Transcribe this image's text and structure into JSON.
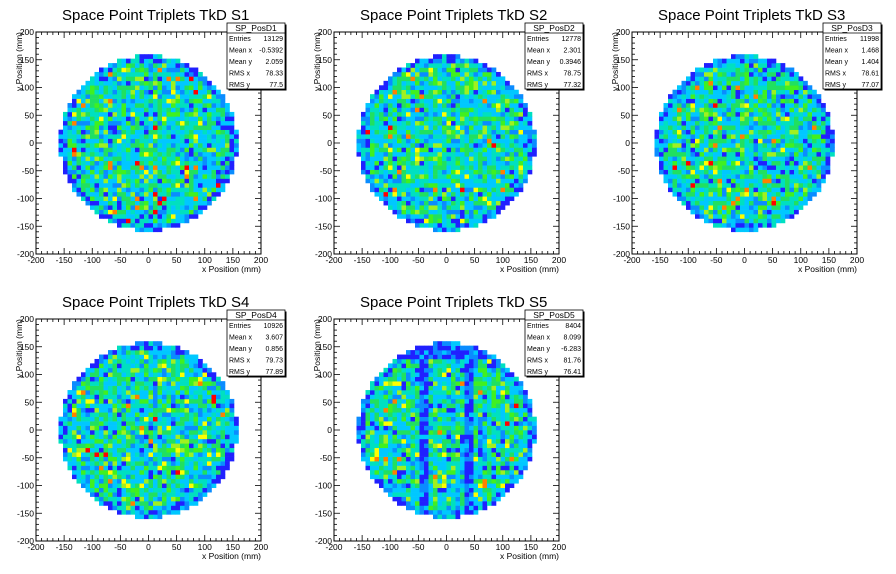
{
  "chart_data": [
    {
      "type": "heatmap",
      "title": "Space Point Triplets TkD S1",
      "xlabel": "x Position (mm)",
      "ylabel": "y Position (mm)",
      "xlim": [
        -200,
        200
      ],
      "ylim": [
        -200,
        200
      ],
      "xticks": [
        "-200",
        "-150",
        "-100",
        "-50",
        "0",
        "50",
        "100",
        "150",
        "200"
      ],
      "yticks": [
        "-200",
        "-150",
        "-100",
        "-50",
        "0",
        "50",
        "100",
        "150",
        "200"
      ],
      "stats": {
        "name": "SP_PosD1",
        "rows": [
          {
            "label": "Entries",
            "value": "13129"
          },
          {
            "label": "Mean x",
            "value": "-0.5392"
          },
          {
            "label": "Mean y",
            "value": "2.059"
          },
          {
            "label": "RMS x",
            "value": "78.33"
          },
          {
            "label": "RMS y",
            "value": "77.5"
          }
        ]
      },
      "entries": 13129,
      "mean_x": -0.5392,
      "mean_y": 2.059,
      "rms_x": 78.33,
      "rms_y": 77.5,
      "radius": 160
    },
    {
      "type": "heatmap",
      "title": "Space Point Triplets TkD S2",
      "xlabel": "x Position (mm)",
      "ylabel": "y Position (mm)",
      "xlim": [
        -200,
        200
      ],
      "ylim": [
        -200,
        200
      ],
      "xticks": [
        "-200",
        "-150",
        "-100",
        "-50",
        "0",
        "50",
        "100",
        "150",
        "200"
      ],
      "yticks": [
        "-200",
        "-150",
        "-100",
        "-50",
        "0",
        "50",
        "100",
        "150",
        "200"
      ],
      "stats": {
        "name": "SP_PosD2",
        "rows": [
          {
            "label": "Entries",
            "value": "12778"
          },
          {
            "label": "Mean x",
            "value": "2.301"
          },
          {
            "label": "Mean y",
            "value": "0.3946"
          },
          {
            "label": "RMS x",
            "value": "78.75"
          },
          {
            "label": "RMS y",
            "value": "77.32"
          }
        ]
      },
      "entries": 12778,
      "mean_x": 2.301,
      "mean_y": 0.3946,
      "rms_x": 78.75,
      "rms_y": 77.32,
      "radius": 160
    },
    {
      "type": "heatmap",
      "title": "Space Point Triplets TkD S3",
      "xlabel": "x Position (mm)",
      "ylabel": "y Position (mm)",
      "xlim": [
        -200,
        200
      ],
      "ylim": [
        -200,
        200
      ],
      "xticks": [
        "-200",
        "-150",
        "-100",
        "-50",
        "0",
        "50",
        "100",
        "150",
        "200"
      ],
      "yticks": [
        "-200",
        "-150",
        "-100",
        "-50",
        "0",
        "50",
        "100",
        "150",
        "200"
      ],
      "stats": {
        "name": "SP_PosD3",
        "rows": [
          {
            "label": "Entries",
            "value": "11998"
          },
          {
            "label": "Mean x",
            "value": "1.468"
          },
          {
            "label": "Mean y",
            "value": "1.404"
          },
          {
            "label": "RMS x",
            "value": "78.61"
          },
          {
            "label": "RMS y",
            "value": "77.07"
          }
        ]
      },
      "entries": 11998,
      "mean_x": 1.468,
      "mean_y": 1.404,
      "rms_x": 78.61,
      "rms_y": 77.07,
      "radius": 160
    },
    {
      "type": "heatmap",
      "title": "Space Point Triplets TkD S4",
      "xlabel": "x Position (mm)",
      "ylabel": "y Position (mm)",
      "xlim": [
        -200,
        200
      ],
      "ylim": [
        -200,
        200
      ],
      "xticks": [
        "-200",
        "-150",
        "-100",
        "-50",
        "0",
        "50",
        "100",
        "150",
        "200"
      ],
      "yticks": [
        "-200",
        "-150",
        "-100",
        "-50",
        "0",
        "50",
        "100",
        "150",
        "200"
      ],
      "stats": {
        "name": "SP_PosD4",
        "rows": [
          {
            "label": "Entries",
            "value": "10926"
          },
          {
            "label": "Mean x",
            "value": "3.607"
          },
          {
            "label": "Mean y",
            "value": "0.856"
          },
          {
            "label": "RMS x",
            "value": "79.73"
          },
          {
            "label": "RMS y",
            "value": "77.89"
          }
        ]
      },
      "entries": 10926,
      "mean_x": 3.607,
      "mean_y": 0.856,
      "rms_x": 79.73,
      "rms_y": 77.89,
      "radius": 160
    },
    {
      "type": "heatmap",
      "title": "Space Point Triplets TkD S5",
      "xlabel": "x Position (mm)",
      "ylabel": "y Position (mm)",
      "xlim": [
        -200,
        200
      ],
      "ylim": [
        -200,
        200
      ],
      "xticks": [
        "-200",
        "-150",
        "-100",
        "-50",
        "0",
        "50",
        "100",
        "150",
        "200"
      ],
      "yticks": [
        "-200",
        "-150",
        "-100",
        "-50",
        "0",
        "50",
        "100",
        "150",
        "200"
      ],
      "stats": {
        "name": "SP_PosD5",
        "rows": [
          {
            "label": "Entries",
            "value": "8404"
          },
          {
            "label": "Mean x",
            "value": "8.099"
          },
          {
            "label": "Mean y",
            "value": "-6.283"
          },
          {
            "label": "RMS x",
            "value": "81.76"
          },
          {
            "label": "RMS y",
            "value": "76.41"
          }
        ]
      },
      "entries": 8404,
      "mean_x": 8.099,
      "mean_y": -6.283,
      "rms_x": 81.76,
      "rms_y": 76.41,
      "radius": 160
    }
  ],
  "colors": {
    "palette": [
      "#2020ff",
      "#0a8cff",
      "#00c8ff",
      "#00e0c0",
      "#20e060",
      "#40f020",
      "#a0f020",
      "#ffff00",
      "#ff8000",
      "#ff0000"
    ],
    "frame": "#000000",
    "background": "#ffffff"
  }
}
